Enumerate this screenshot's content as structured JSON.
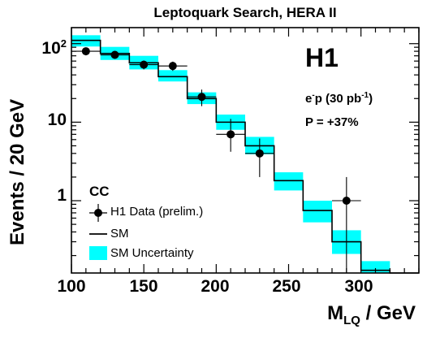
{
  "chart_data": {
    "type": "histogram-with-points",
    "title": "Leptoquark Search, HERA II",
    "ylabel": "Events / 20 GeV",
    "xlabel_main": "M",
    "xlabel_sub": "LQ",
    "xlabel_unit": " / GeV",
    "xlim": [
      100,
      340
    ],
    "ylim": [
      0.12,
      160
    ],
    "y_scale": "log",
    "x_ticks": [
      "100",
      "150",
      "200",
      "250",
      "300"
    ],
    "y_ticks": [
      {
        "base": "10",
        "exp": "2",
        "value": 100
      },
      {
        "base": "10",
        "exp": "",
        "value": 10
      },
      {
        "base": "1",
        "exp": "",
        "value": 1
      }
    ],
    "bin_edges": [
      100,
      120,
      140,
      160,
      180,
      200,
      220,
      240,
      260,
      280,
      300,
      320,
      340
    ],
    "sm_prediction": [
      110,
      75,
      57,
      38,
      20,
      10,
      5.0,
      1.8,
      0.75,
      0.3,
      0.13,
      0.05
    ],
    "sm_uncertainty_low": [
      92,
      62,
      47,
      33,
      17,
      8.0,
      3.9,
      1.35,
      0.53,
      0.21,
      0.085,
      0.035
    ],
    "sm_uncertainty_high": [
      128,
      91,
      70,
      46,
      24,
      12.5,
      6.5,
      2.3,
      1.0,
      0.42,
      0.17,
      0.07
    ],
    "data_points": [
      {
        "x": 110,
        "y": 80,
        "err_low": 9,
        "err_high": 9,
        "xerr": 10
      },
      {
        "x": 130,
        "y": 72,
        "err_low": 8,
        "err_high": 8,
        "xerr": 10
      },
      {
        "x": 150,
        "y": 54,
        "err_low": 7,
        "err_high": 7,
        "xerr": 10
      },
      {
        "x": 170,
        "y": 52,
        "err_low": 7,
        "err_high": 7,
        "xerr": 10
      },
      {
        "x": 190,
        "y": 21,
        "err_low": 5,
        "err_high": 5,
        "xerr": 10
      },
      {
        "x": 210,
        "y": 7,
        "err_low": 2.8,
        "err_high": 4,
        "xerr": 10
      },
      {
        "x": 230,
        "y": 4,
        "err_low": 2,
        "err_high": 2.2,
        "xerr": 10
      },
      {
        "x": 290,
        "y": 1,
        "err_low": 0.88,
        "err_high": 1.0,
        "xerr": 10
      }
    ],
    "legend": {
      "header": "CC",
      "entries": [
        "H1 Data (prelim.)",
        "SM",
        "SM Uncertainty"
      ],
      "placement": "bottom-left"
    },
    "annotations": {
      "experiment": "H1",
      "beam_main": "e",
      "beam_charge": "-",
      "beam_rest": "p (30 pb",
      "lumi_exp": "-1",
      "beam_close": ")",
      "polarization": "P = +37%"
    },
    "colors": {
      "uncertainty": "#00ffff",
      "line": "#000000",
      "marker": "#000000"
    }
  }
}
